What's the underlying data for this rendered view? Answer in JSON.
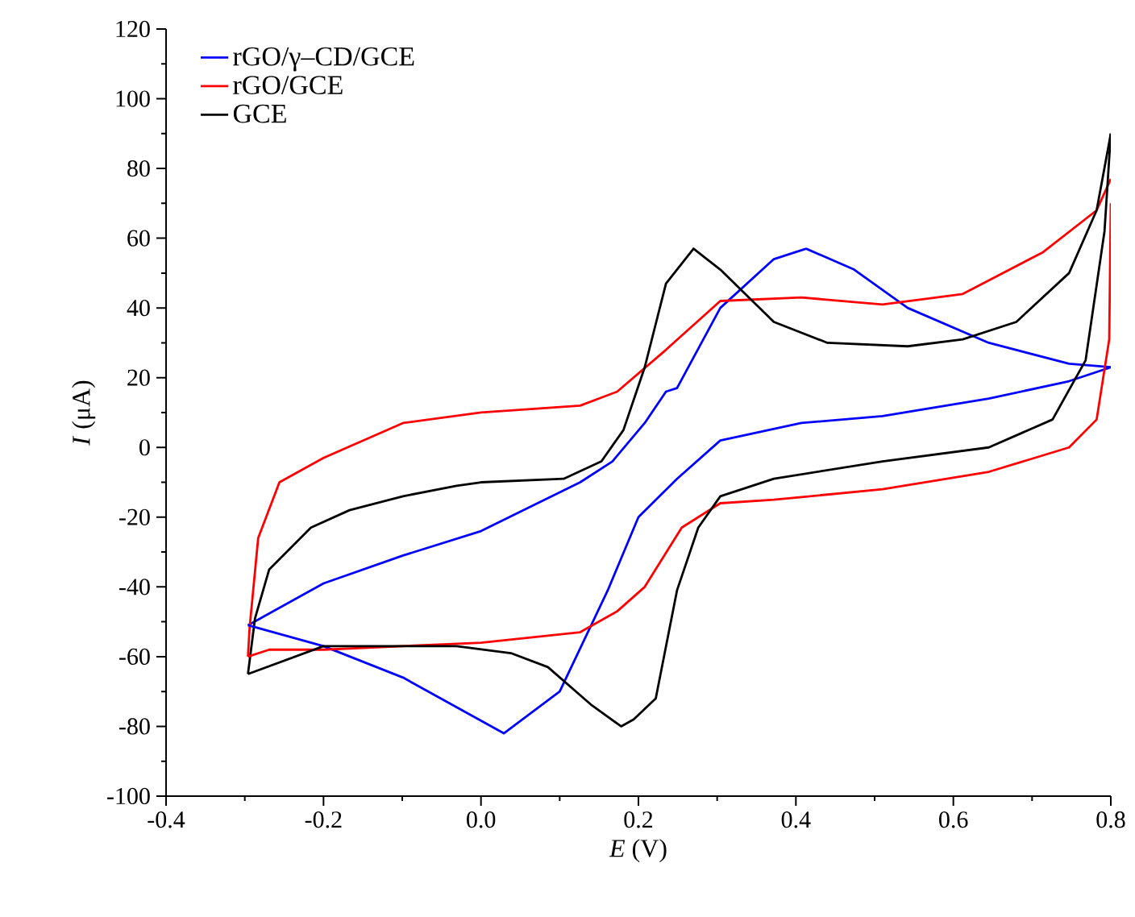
{
  "chart_data": {
    "type": "line",
    "xlabel": "*E* (V)",
    "ylabel": "*I* (μA)",
    "xlim": [
      -0.4,
      0.8
    ],
    "xticks": [
      -0.4,
      -0.2,
      {
        "value": 0,
        "label": "0.0"
      },
      0.2,
      0.4,
      0.6,
      0.8
    ],
    "ylim": [
      -100,
      120
    ],
    "yticks": [
      -100,
      -80,
      -60,
      -40,
      -20,
      0,
      20,
      40,
      60,
      80,
      100,
      120
    ],
    "grid": false,
    "legend": "top left",
    "marker": "none",
    "line_style": "solid",
    "series": [
      {
        "name": "rGO/γ–CD/GCE",
        "color": "#0000ff",
        "x": [
          -0.296,
          -0.2,
          -0.099,
          0.0,
          0.126,
          0.167,
          0.208,
          0.235,
          0.249,
          0.304,
          0.372,
          0.413,
          0.474,
          0.542,
          0.645,
          0.747,
          0.8
        ],
        "values": [
          -51,
          -39,
          -31,
          -24,
          -10,
          -4,
          7,
          16,
          17,
          40,
          54,
          57,
          51,
          40,
          30,
          24,
          23
        ]
      },
      {
        "name": "rGO/GCE",
        "color": "#ff0000",
        "x": [
          -0.296,
          -0.294,
          -0.283,
          -0.256,
          -0.2,
          -0.099,
          0.0,
          0.126,
          0.173,
          0.235,
          0.304,
          0.407,
          0.51,
          0.612,
          0.714,
          0.782,
          0.8
        ],
        "values": [
          -60,
          -52,
          -26,
          -10,
          -3,
          7,
          10,
          12,
          16,
          28,
          42,
          43,
          41,
          44,
          56,
          68,
          77
        ]
      },
      {
        "name": "GCE",
        "color": "#000000",
        "x": [
          -0.296,
          -0.287,
          -0.269,
          -0.216,
          -0.167,
          -0.099,
          -0.031,
          0.0,
          0.105,
          0.153,
          0.181,
          0.208,
          0.235,
          0.27,
          0.304,
          0.372,
          0.44,
          0.542,
          0.612,
          0.68,
          0.747,
          0.782,
          0.8
        ],
        "values": [
          -65,
          -49,
          -35,
          -23,
          -18,
          -14,
          -11,
          -10,
          -9,
          -4,
          5,
          23,
          47,
          57,
          51,
          36,
          30,
          29,
          31,
          36,
          50,
          68,
          90
        ]
      },
      {
        "color": "#0000ff",
        "x": [
          -0.296,
          -0.2,
          -0.099,
          0.029,
          0.1,
          0.161,
          0.2,
          0.249,
          0.304,
          0.407,
          0.51,
          0.645,
          0.747,
          0.8
        ],
        "values": [
          -51,
          -57,
          -66,
          -82,
          -70,
          -41,
          -20,
          -9,
          2,
          7,
          9,
          14,
          19,
          23
        ]
      },
      {
        "color": "#ff0000",
        "x": [
          -0.296,
          -0.269,
          -0.2,
          0.0,
          0.126,
          0.173,
          0.208,
          0.255,
          0.304,
          0.372,
          0.51,
          0.645,
          0.747,
          0.782,
          0.798,
          0.8
        ],
        "values": [
          -60,
          -58,
          -58,
          -56,
          -53,
          -47,
          -40,
          -23,
          -16,
          -15,
          -12,
          -7,
          0,
          8,
          31,
          70
        ]
      },
      {
        "color": "#000000",
        "x": [
          -0.296,
          -0.2,
          -0.031,
          0.038,
          0.085,
          0.141,
          0.178,
          0.194,
          0.222,
          0.249,
          0.276,
          0.304,
          0.372,
          0.51,
          0.645,
          0.726,
          0.768,
          0.792,
          0.8
        ],
        "values": [
          -65,
          -57,
          -57,
          -59,
          -63,
          -74,
          -80,
          -78,
          -72,
          -41,
          -23,
          -14,
          -9,
          -4,
          0,
          8,
          25,
          62,
          90
        ]
      }
    ]
  }
}
